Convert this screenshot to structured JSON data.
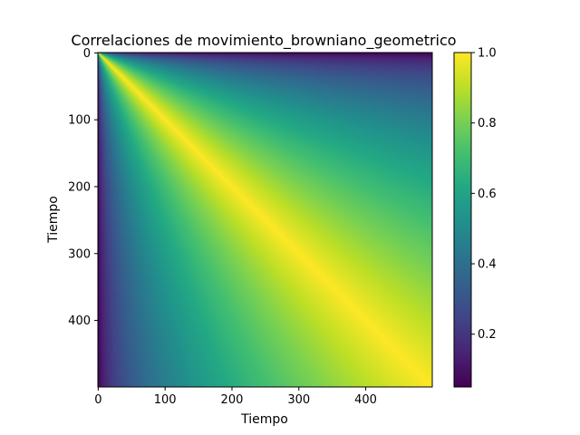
{
  "chart_data": {
    "type": "heatmap",
    "title": "Correlaciones de movimiento_browniano_geometrico",
    "xlabel": "Tiempo",
    "ylabel": "Tiempo",
    "n": 500,
    "xlim": [
      0,
      499
    ],
    "ylim": [
      499,
      0
    ],
    "x_ticks": [
      0,
      100,
      200,
      300,
      400
    ],
    "y_ticks": [
      0,
      100,
      200,
      300,
      400
    ],
    "value_formula": "corr(s,t) = sqrt(min(s,t)/max(s,t))",
    "value_range": [
      0.05,
      1.0
    ],
    "colormap": "viridis",
    "colorbar_ticks": [
      0.2,
      0.4,
      0.6,
      0.8,
      1.0
    ],
    "colorbar_tick_labels": [
      "0.2",
      "0.4",
      "0.6",
      "0.8",
      "1.0"
    ],
    "grid": false
  }
}
